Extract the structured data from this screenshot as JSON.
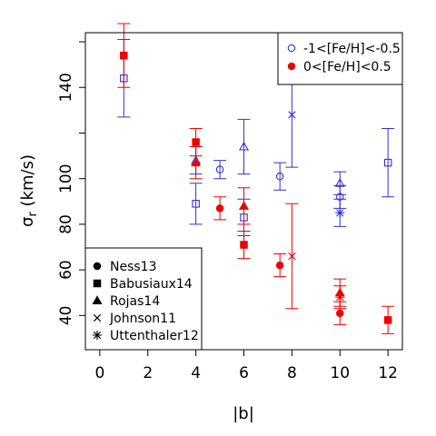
{
  "chart_data": {
    "type": "scatter",
    "title": "",
    "xlabel": "|b|",
    "ylabel_main": "σ",
    "ylabel_sub": "r",
    "ylabel_unit": " (km/s)",
    "xlim": [
      -0.6,
      12.6
    ],
    "ylim": [
      25,
      164
    ],
    "xticks": [
      0,
      2,
      4,
      6,
      8,
      10,
      12
    ],
    "yticks": [
      40,
      60,
      80,
      100,
      140
    ],
    "yminor": [
      120,
      160
    ],
    "colors": {
      "metal_poor": "#3333cc",
      "metal_rich": "#ee0000"
    },
    "metallicity_legend": {
      "position": "top-right",
      "entries": [
        {
          "label": "-1<[Fe/H]<-0.5",
          "color": "#3333cc",
          "filled": false
        },
        {
          "label": "0<[Fe/H]<0.5",
          "color": "#ee0000",
          "filled": true
        }
      ]
    },
    "survey_legend": {
      "position": "bottom-left",
      "entries": [
        {
          "label": "Ness13",
          "marker": "circle"
        },
        {
          "label": "Babusiaux14",
          "marker": "square"
        },
        {
          "label": "Rojas14",
          "marker": "triangle"
        },
        {
          "label": "Johnson11",
          "marker": "cross"
        },
        {
          "label": "Uttenthaler12",
          "marker": "star"
        }
      ]
    },
    "series": [
      {
        "survey": "Ness13",
        "metallicity": "metal_poor",
        "marker": "circle",
        "points": [
          {
            "x": 5,
            "y": 104,
            "err": 4
          },
          {
            "x": 7.5,
            "y": 101,
            "err": 6
          },
          {
            "x": 10,
            "y": 92,
            "err": 5
          }
        ]
      },
      {
        "survey": "Ness13",
        "metallicity": "metal_rich",
        "marker": "circle",
        "points": [
          {
            "x": 5,
            "y": 87,
            "err": 5
          },
          {
            "x": 7.5,
            "y": 62,
            "err": 5
          },
          {
            "x": 10,
            "y": 41,
            "err": 5
          }
        ]
      },
      {
        "survey": "Babusiaux14",
        "metallicity": "metal_poor",
        "marker": "square",
        "points": [
          {
            "x": 1,
            "y": 144,
            "err": 17
          },
          {
            "x": 4,
            "y": 89,
            "err": 9
          },
          {
            "x": 6,
            "y": 83,
            "err": 8
          },
          {
            "x": 12,
            "y": 107,
            "err": 15
          }
        ]
      },
      {
        "survey": "Babusiaux14",
        "metallicity": "metal_rich",
        "marker": "square",
        "points": [
          {
            "x": 1,
            "y": 154,
            "err": 14
          },
          {
            "x": 4,
            "y": 116,
            "err": 6
          },
          {
            "x": 6,
            "y": 71,
            "err": 6
          },
          {
            "x": 12,
            "y": 38,
            "err": 6
          }
        ]
      },
      {
        "survey": "Rojas14",
        "metallicity": "metal_poor",
        "marker": "triangle",
        "points": [
          {
            "x": 4,
            "y": 108,
            "err": 6
          },
          {
            "x": 6,
            "y": 114,
            "err": 12
          },
          {
            "x": 10,
            "y": 98,
            "err": 5
          }
        ]
      },
      {
        "survey": "Rojas14",
        "metallicity": "metal_rich",
        "marker": "triangle",
        "points": [
          {
            "x": 4,
            "y": 107,
            "err": 7
          },
          {
            "x": 6,
            "y": 88,
            "err": 8
          },
          {
            "x": 10,
            "y": 50,
            "err": 6
          }
        ]
      },
      {
        "survey": "Johnson11",
        "metallicity": "metal_poor",
        "marker": "cross",
        "points": [
          {
            "x": 8,
            "y": 128,
            "err": 23
          }
        ]
      },
      {
        "survey": "Johnson11",
        "metallicity": "metal_rich",
        "marker": "cross",
        "points": [
          {
            "x": 8,
            "y": 66,
            "err": 23
          }
        ]
      },
      {
        "survey": "Uttenthaler12",
        "metallicity": "metal_poor",
        "marker": "star",
        "points": [
          {
            "x": 10,
            "y": 85,
            "err": 6
          }
        ]
      },
      {
        "survey": "Uttenthaler12",
        "metallicity": "metal_rich",
        "marker": "star",
        "points": [
          {
            "x": 10,
            "y": 48,
            "err": 5
          }
        ]
      }
    ]
  }
}
